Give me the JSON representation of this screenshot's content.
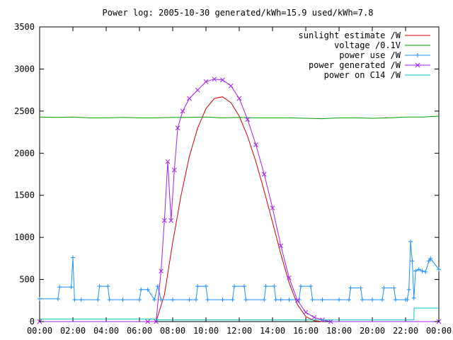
{
  "chart_data": {
    "type": "line",
    "title": "Power log: 2005-10-30 generated/kWh=15.9 used/kWh=7.8",
    "xlabel": "",
    "ylabel": "",
    "xlim": [
      0,
      24
    ],
    "ylim": [
      0,
      3500
    ],
    "x_ticks": [
      0,
      2,
      4,
      6,
      8,
      10,
      12,
      14,
      16,
      18,
      20,
      22,
      24
    ],
    "x_tick_labels": [
      "00:00",
      "02:00",
      "04:00",
      "06:00",
      "08:00",
      "10:00",
      "12:00",
      "14:00",
      "16:00",
      "18:00",
      "20:00",
      "22:00",
      "00:00"
    ],
    "y_ticks": [
      0,
      500,
      1000,
      1500,
      2000,
      2500,
      3000,
      3500
    ],
    "y_tick_labels": [
      "0",
      "500",
      "1000",
      "1500",
      "2000",
      "2500",
      "3000",
      "3500"
    ],
    "grid": false,
    "legend_position": "top-right",
    "series": [
      {
        "name": "sunlight estimate /W",
        "color": "#d40000",
        "marker": "none",
        "x": [
          7.0,
          7.5,
          8.0,
          8.5,
          9.0,
          9.5,
          10.0,
          10.5,
          11.0,
          11.5,
          12.0,
          12.5,
          13.0,
          13.5,
          14.0,
          14.5,
          15.0,
          15.5,
          16.0,
          16.5,
          17.0
        ],
        "y": [
          0,
          320,
          940,
          1500,
          1960,
          2300,
          2530,
          2650,
          2670,
          2600,
          2440,
          2200,
          1900,
          1550,
          1180,
          800,
          460,
          200,
          60,
          10,
          0
        ]
      },
      {
        "name": "voltage /0.1V",
        "color": "#00a000",
        "marker": "none",
        "x": [
          0,
          1,
          2,
          3,
          4,
          5,
          6,
          7,
          8,
          9,
          10,
          11,
          12,
          13,
          14,
          15,
          16,
          17,
          18,
          19,
          20,
          21,
          22,
          23,
          24
        ],
        "y": [
          2430,
          2425,
          2430,
          2420,
          2420,
          2425,
          2420,
          2420,
          2425,
          2425,
          2430,
          2420,
          2425,
          2420,
          2420,
          2420,
          2415,
          2410,
          2420,
          2420,
          2415,
          2420,
          2430,
          2430,
          2440
        ]
      },
      {
        "name": "power use /W",
        "color": "#1e90ff",
        "marker": "plus",
        "x": [
          0,
          1.1,
          1.2,
          1.9,
          2.0,
          2.1,
          2.5,
          3.5,
          3.6,
          4.1,
          4.2,
          5.0,
          6.0,
          6.1,
          6.5,
          6.9,
          7.1,
          7.3,
          8.0,
          9.0,
          9.4,
          9.5,
          10.0,
          10.1,
          11.0,
          11.6,
          11.7,
          12.3,
          12.4,
          13.5,
          13.6,
          14.1,
          14.2,
          14.5,
          15.0,
          15.6,
          15.7,
          16.3,
          16.4,
          17.0,
          18.0,
          18.6,
          18.7,
          19.3,
          19.4,
          20.0,
          20.6,
          20.7,
          21.3,
          21.4,
          22.0,
          22.1,
          22.2,
          22.3,
          22.4,
          22.5,
          22.6,
          22.8,
          23.0,
          23.2,
          23.4,
          23.5,
          24.0
        ],
        "y": [
          270,
          270,
          410,
          410,
          760,
          260,
          260,
          260,
          420,
          420,
          260,
          260,
          260,
          380,
          380,
          260,
          420,
          260,
          260,
          260,
          260,
          420,
          420,
          260,
          260,
          260,
          420,
          420,
          260,
          260,
          420,
          420,
          260,
          260,
          260,
          260,
          420,
          420,
          260,
          260,
          260,
          260,
          400,
          400,
          260,
          260,
          260,
          400,
          400,
          260,
          260,
          260,
          380,
          950,
          720,
          280,
          600,
          620,
          600,
          590,
          720,
          750,
          620
        ]
      },
      {
        "name": "power generated /W",
        "color": "#a020f0",
        "marker": "x",
        "x": [
          0,
          6.5,
          7.0,
          7.3,
          7.5,
          7.7,
          7.9,
          8.1,
          8.3,
          8.6,
          9.0,
          9.5,
          10.0,
          10.5,
          11.0,
          11.5,
          12.0,
          12.5,
          13.0,
          13.5,
          14.0,
          14.5,
          15.0,
          15.5,
          16.0,
          16.5,
          17.0,
          17.5,
          24.0
        ],
        "y": [
          0,
          0,
          0,
          600,
          1200,
          1900,
          1200,
          1800,
          2300,
          2500,
          2650,
          2750,
          2850,
          2880,
          2870,
          2800,
          2650,
          2400,
          2100,
          1750,
          1350,
          900,
          520,
          250,
          110,
          50,
          20,
          0,
          0
        ]
      },
      {
        "name": "power on C14 /W",
        "color": "#00c8c8",
        "marker": "none",
        "x": [
          0,
          7.0,
          7.01,
          22.5,
          22.51,
          24.0
        ],
        "y": [
          30,
          30,
          20,
          20,
          160,
          160
        ]
      }
    ]
  }
}
